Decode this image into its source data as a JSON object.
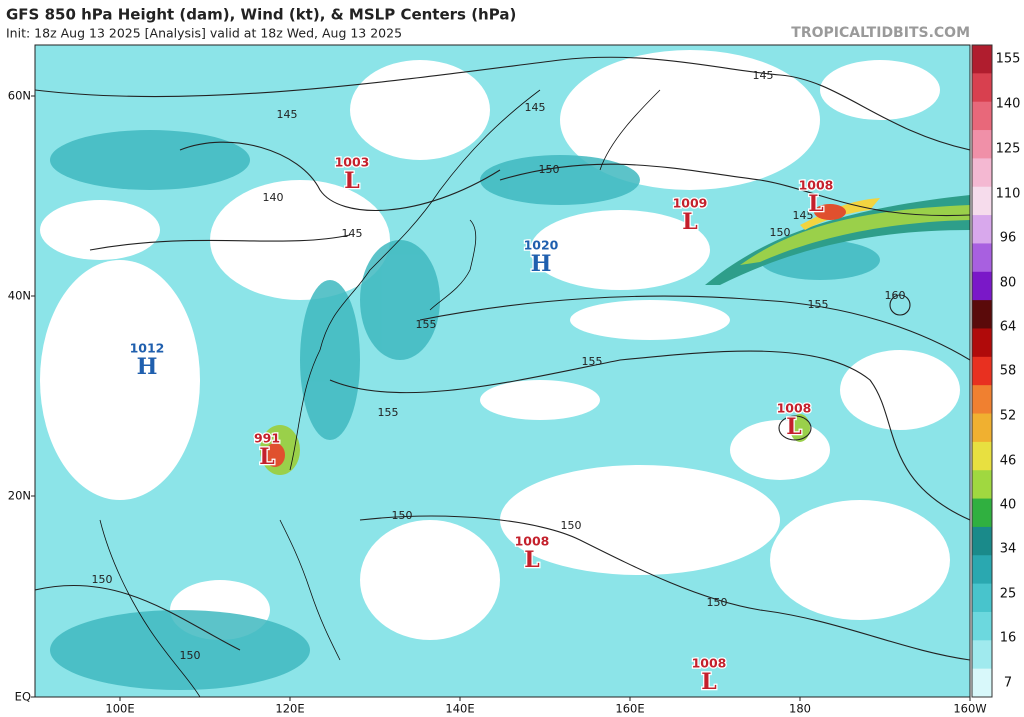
{
  "header": {
    "title": "GFS 850 hPa Height (dam), Wind (kt), & MSLP Centers (hPa)",
    "subtitle": "Init: 18z Aug 13 2025   [Analysis]   valid at 18z Wed, Aug 13 2025",
    "brand": "TROPICALTIDBITS.COM"
  },
  "map": {
    "lat_labels": [
      "60N",
      "40N",
      "20N",
      "EQ"
    ],
    "lon_labels": [
      "100E",
      "120E",
      "140E",
      "160E",
      "180",
      "160W"
    ],
    "centers": [
      {
        "pressure": "1003",
        "symbol": "L"
      },
      {
        "pressure": "1009",
        "symbol": "L"
      },
      {
        "pressure": "1008",
        "symbol": "L"
      },
      {
        "pressure": "1020",
        "symbol": "H"
      },
      {
        "pressure": "1012",
        "symbol": "H"
      },
      {
        "pressure": "991",
        "symbol": "L"
      },
      {
        "pressure": "1008",
        "symbol": "L"
      },
      {
        "pressure": "1008",
        "symbol": "L"
      },
      {
        "pressure": "1008",
        "symbol": "L"
      }
    ],
    "contour_labels": [
      "145",
      "145",
      "145",
      "140",
      "145",
      "150",
      "150",
      "145",
      "155",
      "160",
      "155",
      "155",
      "155",
      "150",
      "150",
      "150",
      "150",
      "150"
    ]
  },
  "colorbar": {
    "labels": [
      "155",
      "140",
      "125",
      "110",
      "96",
      "80",
      "64",
      "58",
      "52",
      "46",
      "40",
      "34",
      "25",
      "16",
      "7"
    ]
  }
}
